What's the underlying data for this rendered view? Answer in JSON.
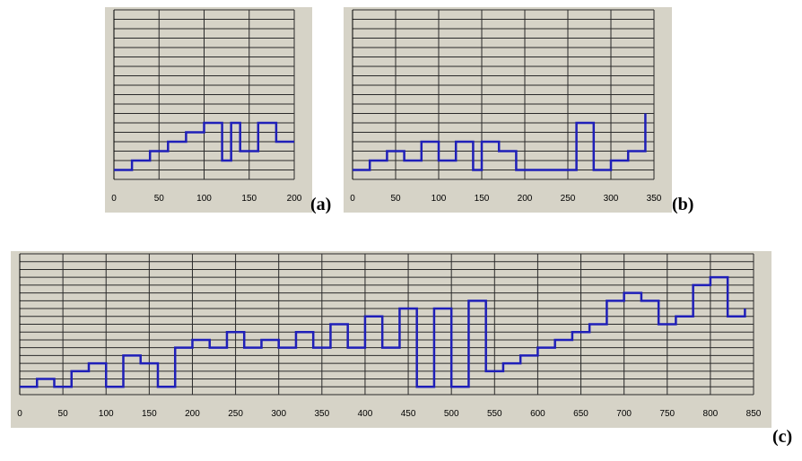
{
  "labels": {
    "a": "(a)",
    "b": "(b)",
    "c": "(c)"
  },
  "colors": {
    "background": "#d6d3c7",
    "grid": "#2a2a2a",
    "line": "#1f1fb8"
  },
  "chart_data": [
    {
      "id": "a",
      "type": "line",
      "step": true,
      "grid": true,
      "xlim": [
        0,
        200
      ],
      "ylim": [
        0,
        18
      ],
      "xticks": [
        "0",
        "50",
        "100",
        "150",
        "200"
      ],
      "x": [
        0,
        20,
        40,
        60,
        80,
        100,
        120,
        130,
        140,
        160,
        180,
        200
      ],
      "y": [
        1,
        2,
        3,
        4,
        5,
        6,
        2,
        6,
        3,
        6,
        4,
        4
      ]
    },
    {
      "id": "b",
      "type": "line",
      "step": true,
      "grid": true,
      "xlim": [
        0,
        350
      ],
      "ylim": [
        0,
        18
      ],
      "xticks": [
        "0",
        "50",
        "100",
        "150",
        "200",
        "250",
        "300",
        "350"
      ],
      "x": [
        0,
        20,
        40,
        60,
        80,
        100,
        120,
        140,
        150,
        170,
        190,
        260,
        280,
        300,
        320,
        340
      ],
      "y": [
        1,
        2,
        3,
        2,
        4,
        2,
        4,
        1,
        4,
        3,
        1,
        6,
        1,
        2,
        3,
        7
      ]
    },
    {
      "id": "c",
      "type": "line",
      "step": true,
      "grid": true,
      "xlim": [
        0,
        850
      ],
      "ylim": [
        0,
        18
      ],
      "xticks": [
        "0",
        "50",
        "100",
        "150",
        "200",
        "250",
        "300",
        "350",
        "400",
        "450",
        "500",
        "550",
        "600",
        "650",
        "700",
        "750",
        "800",
        "850"
      ],
      "x": [
        0,
        20,
        40,
        60,
        80,
        100,
        120,
        140,
        160,
        180,
        200,
        220,
        240,
        260,
        280,
        300,
        320,
        340,
        360,
        380,
        400,
        420,
        440,
        460,
        480,
        500,
        520,
        540,
        560,
        580,
        600,
        620,
        640,
        660,
        680,
        700,
        720,
        740,
        760,
        780,
        800,
        820,
        840
      ],
      "y": [
        1,
        2,
        1,
        3,
        4,
        1,
        5,
        4,
        1,
        6,
        7,
        6,
        8,
        6,
        7,
        6,
        8,
        6,
        9,
        6,
        10,
        6,
        11,
        1,
        11,
        1,
        12,
        3,
        4,
        5,
        6,
        7,
        8,
        9,
        12,
        13,
        12,
        9,
        10,
        14,
        15,
        10,
        11
      ]
    }
  ]
}
